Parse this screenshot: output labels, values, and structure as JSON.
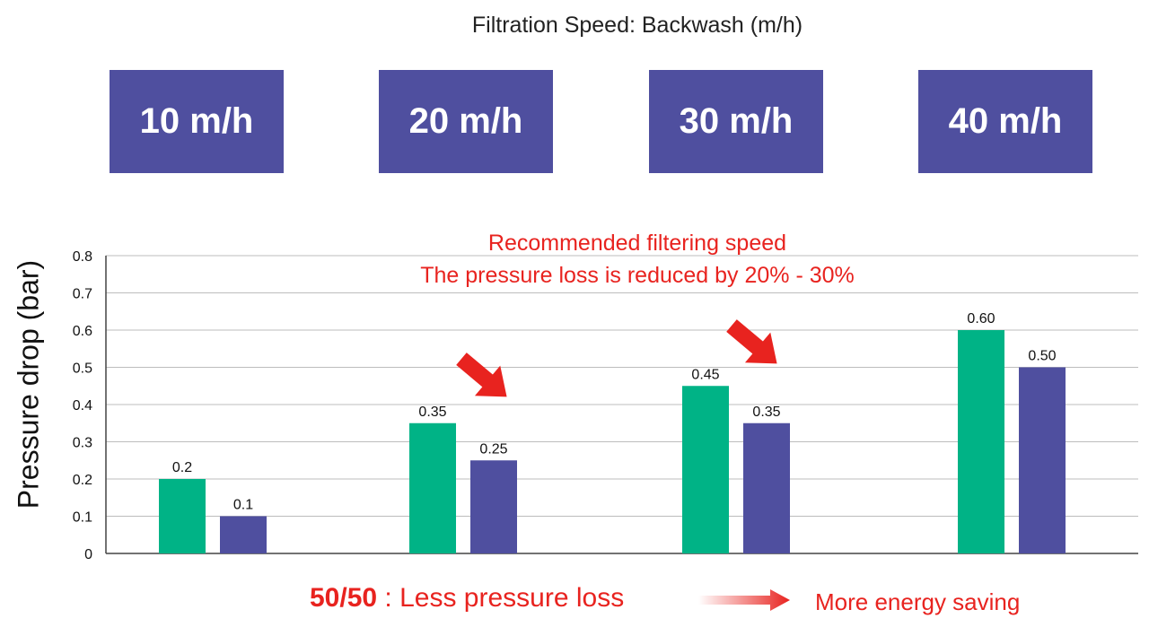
{
  "header": {
    "title": "Filtration Speed: Backwash (m/h)"
  },
  "speed_boxes": [
    "10 m/h",
    "20 m/h",
    "30 m/h",
    "40 m/h"
  ],
  "annotations": {
    "recommended_line1": "Recommended filtering speed",
    "recommended_line2": "The pressure loss is reduced by 20% - 30%",
    "bottom_bold": "50/50",
    "bottom_text": " : Less pressure loss",
    "bottom_right": "More energy saving"
  },
  "colors": {
    "green": "#00b386",
    "purple": "#4f4f9f",
    "accent": "#e8231f"
  },
  "chart_data": {
    "type": "bar",
    "categories": [
      "10 m/h",
      "20 m/h",
      "30 m/h",
      "40 m/h"
    ],
    "series": [
      {
        "values": [
          0.2,
          0.35,
          0.45,
          0.6
        ],
        "labels": [
          "0.2",
          "0.35",
          "0.45",
          "0.60"
        ],
        "color": "#00b386"
      },
      {
        "values": [
          0.1,
          0.25,
          0.35,
          0.5
        ],
        "labels": [
          "0.1",
          "0.25",
          "0.35",
          "0.50"
        ],
        "color": "#4f4f9f"
      }
    ],
    "ylabel": "Pressure drop (bar)",
    "ylim": [
      0,
      0.8
    ],
    "yticks": [
      "0",
      "0.1",
      "0.2",
      "0.3",
      "0.4",
      "0.5",
      "0.6",
      "0.7",
      "0.8"
    ],
    "grid": true
  }
}
